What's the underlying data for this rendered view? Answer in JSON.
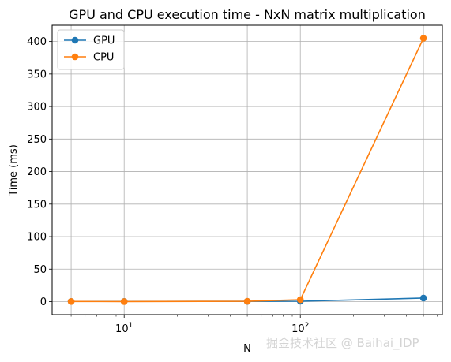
{
  "chart_data": {
    "type": "line",
    "title": "GPU and CPU execution time - NxN matrix multiplication",
    "xlabel": "N",
    "ylabel": "Time (ms)",
    "xscale": "log",
    "x": [
      5,
      10,
      50,
      100,
      500
    ],
    "xlim": [
      3.9,
      640
    ],
    "ylim": [
      -20,
      425
    ],
    "y_ticks": [
      0,
      50,
      100,
      150,
      200,
      250,
      300,
      350,
      400
    ],
    "x_ticks": [
      {
        "value": 10,
        "base": "10",
        "exp": "1"
      },
      {
        "value": 100,
        "base": "10",
        "exp": "2"
      }
    ],
    "grid": true,
    "legend_position": "top-left",
    "series": [
      {
        "name": "GPU",
        "color": "#1f77b4",
        "values": [
          0.3,
          0.3,
          0.4,
          0.6,
          5.5
        ]
      },
      {
        "name": "CPU",
        "color": "#ff7f0e",
        "values": [
          0.2,
          0.1,
          0.5,
          3.0,
          405
        ]
      }
    ]
  },
  "watermark": "掘金技术社区 @ Baihai_IDP"
}
